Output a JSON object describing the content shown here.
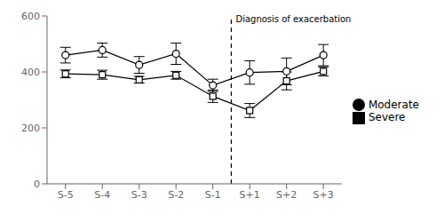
{
  "chart_data": {
    "type": "line",
    "x": [
      0,
      1,
      2,
      3,
      4,
      5,
      6,
      7
    ],
    "xlim": [
      -0.5,
      7.5
    ],
    "xticks": [
      {
        "value": 0,
        "label": "S-5"
      },
      {
        "value": 1,
        "label": "S-4"
      },
      {
        "value": 2,
        "label": "S-3"
      },
      {
        "value": 3,
        "label": "S-2"
      },
      {
        "value": 4,
        "label": "S-1"
      },
      {
        "value": 5,
        "label": "S+1"
      },
      {
        "value": 6,
        "label": "S+2"
      },
      {
        "value": 7,
        "label": "S+3"
      }
    ],
    "ylim": [
      0,
      600
    ],
    "yticks": [
      0,
      200,
      400,
      600
    ],
    "grid": false,
    "legend": "right",
    "series": [
      {
        "name": "Moderate",
        "color": "#000000",
        "marker": "circle",
        "line_style": "solid",
        "values": [
          460,
          478,
          425,
          465,
          352,
          398,
          402,
          460
        ],
        "yerr": [
          28,
          25,
          30,
          38,
          22,
          42,
          48,
          38
        ]
      },
      {
        "name": "Severe",
        "color": "#000000",
        "marker": "square",
        "line_style": "solid",
        "values": [
          393,
          390,
          372,
          388,
          313,
          262,
          368,
          402
        ],
        "yerr": [
          14,
          16,
          12,
          14,
          22,
          25,
          32,
          16
        ]
      }
    ],
    "annotations": [
      {
        "type": "vline",
        "x": 4.5,
        "line_style": "dashed",
        "text": "Diagnosis of exacerbation",
        "y": 590
      }
    ]
  }
}
